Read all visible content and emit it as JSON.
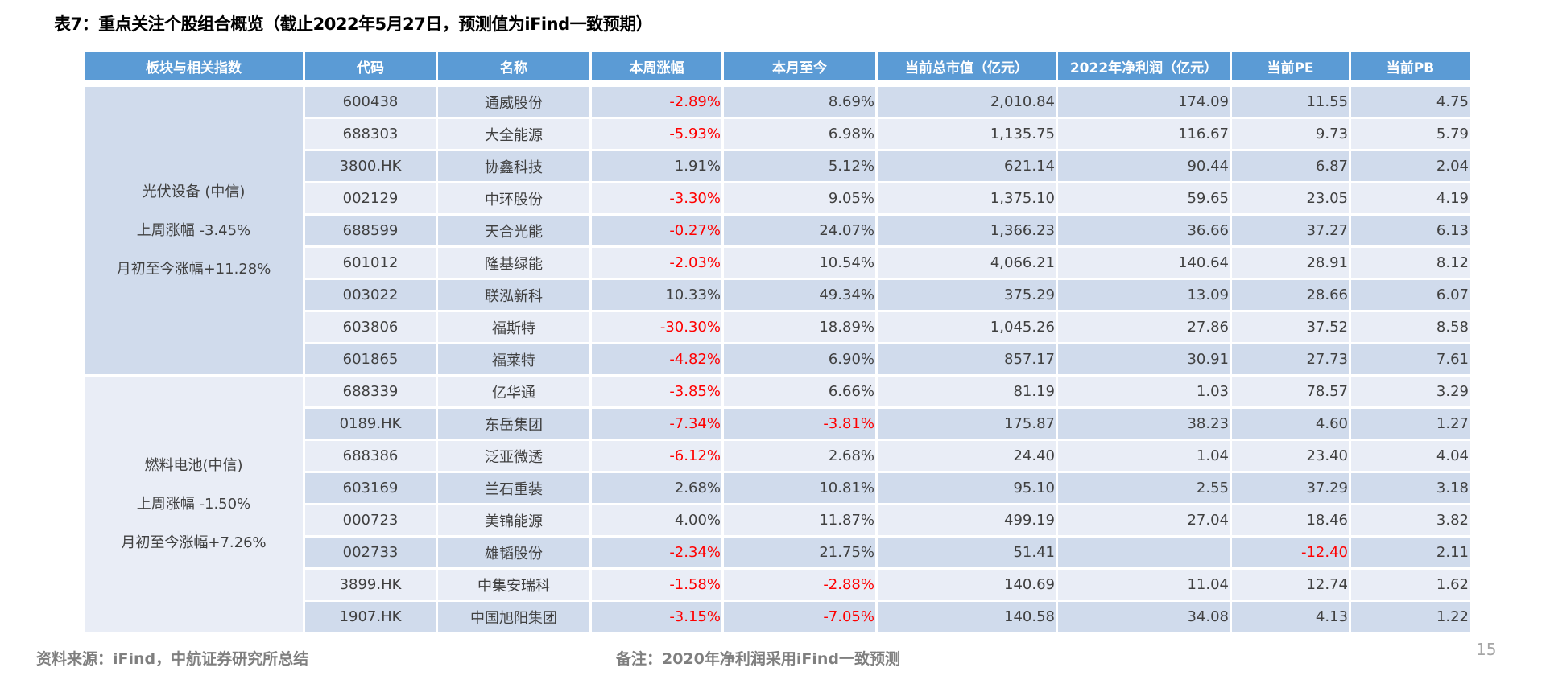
{
  "title": "表7：重点关注个股组合概览（截止2022年5月27日，预测值为iFind一致预期）",
  "columns": [
    "板块与相关指数",
    "代码",
    "名称",
    "本周涨幅",
    "本月至今",
    "当前总市值（亿元）",
    "2022年净利润（亿元）",
    "当前PE",
    "当前PB"
  ],
  "groups": [
    {
      "lines": [
        "光伏设备 (中信)",
        "上周涨幅 -3.45%",
        "月初至今涨幅+11.28%"
      ],
      "rows": [
        [
          "600438",
          "通威股份",
          "-2.89%",
          "8.69%",
          "2,010.84",
          "174.09",
          "11.55",
          "4.75"
        ],
        [
          "688303",
          "大全能源",
          "-5.93%",
          "6.98%",
          "1,135.75",
          "116.67",
          "9.73",
          "5.79"
        ],
        [
          "3800.HK",
          "协鑫科技",
          "1.91%",
          "5.12%",
          "621.14",
          "90.44",
          "6.87",
          "2.04"
        ],
        [
          "002129",
          "中环股份",
          "-3.30%",
          "9.05%",
          "1,375.10",
          "59.65",
          "23.05",
          "4.19"
        ],
        [
          "688599",
          "天合光能",
          "-0.27%",
          "24.07%",
          "1,366.23",
          "36.66",
          "37.27",
          "6.13"
        ],
        [
          "601012",
          "隆基绿能",
          "-2.03%",
          "10.54%",
          "4,066.21",
          "140.64",
          "28.91",
          "8.12"
        ],
        [
          "003022",
          "联泓新科",
          "10.33%",
          "49.34%",
          "375.29",
          "13.09",
          "28.66",
          "6.07"
        ],
        [
          "603806",
          "福斯特",
          "-30.30%",
          "18.89%",
          "1,045.26",
          "27.86",
          "37.52",
          "8.58"
        ],
        [
          "601865",
          "福莱特",
          "-4.82%",
          "6.90%",
          "857.17",
          "30.91",
          "27.73",
          "7.61"
        ]
      ]
    },
    {
      "lines": [
        "燃料电池(中信)",
        "上周涨幅 -1.50%",
        "月初至今涨幅+7.26%"
      ],
      "rows": [
        [
          "688339",
          "亿华通",
          "-3.85%",
          "6.66%",
          "81.19",
          "1.03",
          "78.57",
          "3.29"
        ],
        [
          "0189.HK",
          "东岳集团",
          "-7.34%",
          "-3.81%",
          "175.87",
          "38.23",
          "4.60",
          "1.27"
        ],
        [
          "688386",
          "泛亚微透",
          "-6.12%",
          "2.68%",
          "24.40",
          "1.04",
          "23.40",
          "4.04"
        ],
        [
          "603169",
          "兰石重装",
          "2.68%",
          "10.81%",
          "95.10",
          "2.55",
          "37.29",
          "3.18"
        ],
        [
          "000723",
          "美锦能源",
          "4.00%",
          "11.87%",
          "499.19",
          "27.04",
          "18.46",
          "3.82"
        ],
        [
          "002733",
          "雄韬股份",
          "-2.34%",
          "21.75%",
          "51.41",
          "",
          "-12.40",
          "2.11"
        ],
        [
          "3899.HK",
          "中集安瑞科",
          "-1.58%",
          "-2.88%",
          "140.69",
          "11.04",
          "12.74",
          "1.62"
        ],
        [
          "1907.HK",
          "中国旭阳集团",
          "-3.15%",
          "-7.05%",
          "140.58",
          "34.08",
          "4.13",
          "1.22"
        ]
      ]
    }
  ],
  "colors": {
    "header": "#5B9BD5",
    "row_dark": "#D0DBEC",
    "row_light": "#E9EDF6",
    "negative": "#FF0000",
    "text": "#404040"
  },
  "footer": {
    "source": "资料来源：iFind，中航证券研究所总结",
    "note": "备注：2020年净利润采用iFind一致预测"
  },
  "page_number": "15"
}
